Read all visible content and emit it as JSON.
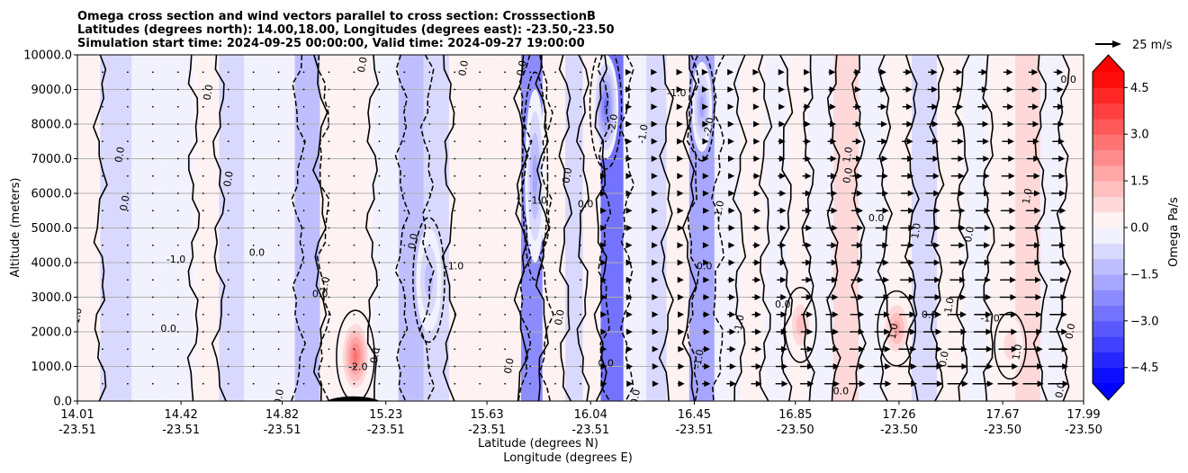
{
  "chart_data": {
    "type": "heatmap",
    "subtype": "filled-contour cross section with contour lines and wind vectors",
    "title_lines": [
      "Omega cross section and wind vectors parallel to cross section: CrosssectionB",
      "Latitudes (degrees north): 14.00,18.00, Longitudes (degrees east): -23.50,-23.50",
      "Simulation start time: 2024-09-25 00:00:00, Valid time: 2024-09-27 19:00:00"
    ],
    "ylabel": "Altitude (meters)",
    "xlabel_lines": [
      "Latitude (degrees N)",
      "Longitude (degrees E)"
    ],
    "ylim": [
      0,
      10000
    ],
    "yticks": [
      0,
      1000,
      2000,
      3000,
      4000,
      5000,
      6000,
      7000,
      8000,
      9000,
      10000
    ],
    "ytick_labels": [
      "0.0",
      "1000.0",
      "2000.0",
      "3000.0",
      "4000.0",
      "5000.0",
      "6000.0",
      "7000.0",
      "8000.0",
      "9000.0",
      "10000.0"
    ],
    "xlim": [
      14.01,
      17.99
    ],
    "xticks": [
      {
        "lat": 14.01,
        "lat_label": "14.01",
        "lon_label": "-23.51"
      },
      {
        "lat": 14.42,
        "lat_label": "14.42",
        "lon_label": "-23.51"
      },
      {
        "lat": 14.82,
        "lat_label": "14.82",
        "lon_label": "-23.51"
      },
      {
        "lat": 15.23,
        "lat_label": "15.23",
        "lon_label": "-23.51"
      },
      {
        "lat": 15.63,
        "lat_label": "15.63",
        "lon_label": "-23.51"
      },
      {
        "lat": 16.04,
        "lat_label": "16.04",
        "lon_label": "-23.51"
      },
      {
        "lat": 16.45,
        "lat_label": "16.45",
        "lon_label": "-23.51"
      },
      {
        "lat": 16.85,
        "lat_label": "16.85",
        "lon_label": "-23.50"
      },
      {
        "lat": 17.26,
        "lat_label": "17.26",
        "lon_label": "-23.50"
      },
      {
        "lat": 17.67,
        "lat_label": "17.67",
        "lon_label": "-23.50"
      },
      {
        "lat": 17.99,
        "lat_label": "17.99",
        "lon_label": "-23.50"
      }
    ],
    "grid": "horizontal",
    "colorbar": {
      "label": "Omega Pa/s",
      "range": [
        -5.0,
        5.0
      ],
      "levels": 20,
      "extend": "both",
      "ticks": [
        -4.5,
        -3.0,
        -1.5,
        0.0,
        1.5,
        3.0,
        4.5
      ],
      "tick_labels": [
        "−4.5",
        "−3.0",
        "−1.5",
        "0.0",
        "1.5",
        "3.0",
        "4.5"
      ],
      "colormap": "bwr",
      "color_low": "#0000ff",
      "color_mid": "#ffffff",
      "color_high": "#ff0000"
    },
    "contour_levels": [
      -2.0,
      -1.0,
      0.0,
      1.0,
      2.0
    ],
    "contour_color": "#000000",
    "vector_key": {
      "label": "25 m/s",
      "speed": 25
    },
    "terrain": {
      "peak_lat": 15.1,
      "peak_height_m": 180,
      "color": "#000000"
    },
    "omega_columns": [
      {
        "lat": 14.05,
        "value": 0.3
      },
      {
        "lat": 14.15,
        "value": -0.6
      },
      {
        "lat": 14.3,
        "value": -0.4
      },
      {
        "lat": 14.42,
        "value": -0.3
      },
      {
        "lat": 14.52,
        "value": 0.2
      },
      {
        "lat": 14.62,
        "value": -0.8
      },
      {
        "lat": 14.72,
        "value": -0.5
      },
      {
        "lat": 14.82,
        "value": -0.3
      },
      {
        "lat": 14.92,
        "value": -1.2
      },
      {
        "lat": 15.02,
        "value": 0.2
      },
      {
        "lat": 15.12,
        "value": 0.4
      },
      {
        "lat": 15.23,
        "value": -0.4
      },
      {
        "lat": 15.33,
        "value": -1.4
      },
      {
        "lat": 15.43,
        "value": -0.6
      },
      {
        "lat": 15.53,
        "value": 0.3
      },
      {
        "lat": 15.63,
        "value": 0.2
      },
      {
        "lat": 15.73,
        "value": 0.1
      },
      {
        "lat": 15.8,
        "value": -2.2
      },
      {
        "lat": 15.9,
        "value": 0.1
      },
      {
        "lat": 15.98,
        "value": -0.8
      },
      {
        "lat": 16.04,
        "value": 0.3
      },
      {
        "lat": 16.12,
        "value": -2.8
      },
      {
        "lat": 16.22,
        "value": -0.2
      },
      {
        "lat": 16.3,
        "value": -0.9
      },
      {
        "lat": 16.38,
        "value": 0.4
      },
      {
        "lat": 16.48,
        "value": -1.8
      },
      {
        "lat": 16.58,
        "value": -0.4
      },
      {
        "lat": 16.68,
        "value": 0.3
      },
      {
        "lat": 16.78,
        "value": -0.5
      },
      {
        "lat": 16.85,
        "value": 0.3
      },
      {
        "lat": 16.95,
        "value": -0.4
      },
      {
        "lat": 17.05,
        "value": 0.6
      },
      {
        "lat": 17.15,
        "value": -0.3
      },
      {
        "lat": 17.26,
        "value": 0.4
      },
      {
        "lat": 17.36,
        "value": -0.6
      },
      {
        "lat": 17.46,
        "value": 0.3
      },
      {
        "lat": 17.56,
        "value": -0.4
      },
      {
        "lat": 17.67,
        "value": 0.4
      },
      {
        "lat": 17.77,
        "value": 0.7
      },
      {
        "lat": 17.87,
        "value": -0.3
      },
      {
        "lat": 17.95,
        "value": 0.4
      }
    ],
    "omega_anomalies": [
      {
        "lat": 15.11,
        "z": 1300,
        "dlat": 0.06,
        "dz": 1100,
        "value": 2.6
      },
      {
        "lat": 17.25,
        "z": 2100,
        "dlat": 0.06,
        "dz": 900,
        "value": 2.0
      },
      {
        "lat": 16.87,
        "z": 2200,
        "dlat": 0.05,
        "dz": 900,
        "value": 1.2
      },
      {
        "lat": 17.7,
        "z": 1600,
        "dlat": 0.05,
        "dz": 800,
        "value": 1.0
      },
      {
        "lat": 16.1,
        "z": 8500,
        "dlat": 0.05,
        "dz": 1500,
        "value": -3.0
      },
      {
        "lat": 16.48,
        "z": 8500,
        "dlat": 0.04,
        "dz": 1300,
        "value": -2.0
      },
      {
        "lat": 15.82,
        "z": 6500,
        "dlat": 0.04,
        "dz": 2500,
        "value": -1.6
      },
      {
        "lat": 15.4,
        "z": 3500,
        "dlat": 0.05,
        "dz": 1500,
        "value": -1.5
      }
    ],
    "wind_rows_m": [
      500,
      1000,
      1500,
      2000,
      2500,
      3000,
      3500,
      4000,
      4500,
      5000,
      5500,
      6000,
      6500,
      7000,
      7500,
      8000,
      8500,
      9000,
      9500
    ],
    "wind_profile": {
      "lat_start_increase": 15.9,
      "max_speed_lower": 12,
      "max_speed_upper": 9,
      "boundary_m": 4500
    },
    "contour_labels": [
      {
        "lat": 14.4,
        "z": 4000,
        "text": "-1.0"
      },
      {
        "lat": 14.02,
        "z": 2400,
        "text": "-1.0"
      },
      {
        "lat": 15.0,
        "z": 3300,
        "text": "-1.0"
      },
      {
        "lat": 14.97,
        "z": 3000,
        "text": "0.0"
      },
      {
        "lat": 14.19,
        "z": 7100,
        "text": "0.0"
      },
      {
        "lat": 14.21,
        "z": 5700,
        "text": "0.0"
      },
      {
        "lat": 14.37,
        "z": 2000,
        "text": "0.0"
      },
      {
        "lat": 14.54,
        "z": 8900,
        "text": "0.0"
      },
      {
        "lat": 14.62,
        "z": 6400,
        "text": "0.0"
      },
      {
        "lat": 14.72,
        "z": 4200,
        "text": "0.0"
      },
      {
        "lat": 15.15,
        "z": 9700,
        "text": "0.0"
      },
      {
        "lat": 15.35,
        "z": 4600,
        "text": "0.0"
      },
      {
        "lat": 15.5,
        "z": 3800,
        "text": "-1.0"
      },
      {
        "lat": 15.55,
        "z": 9600,
        "text": "0.0"
      },
      {
        "lat": 15.78,
        "z": 9600,
        "text": "0.0"
      },
      {
        "lat": 15.83,
        "z": 5700,
        "text": "-1.0"
      },
      {
        "lat": 15.93,
        "z": 2400,
        "text": "0.0"
      },
      {
        "lat": 15.96,
        "z": 6500,
        "text": "0.0"
      },
      {
        "lat": 16.02,
        "z": 5600,
        "text": "0.0"
      },
      {
        "lat": 16.14,
        "z": 8000,
        "text": "-2.0"
      },
      {
        "lat": 16.26,
        "z": 7700,
        "text": "-1.0"
      },
      {
        "lat": 16.38,
        "z": 8800,
        "text": "-1.0"
      },
      {
        "lat": 16.52,
        "z": 7900,
        "text": "-2.0"
      },
      {
        "lat": 16.56,
        "z": 5500,
        "text": "-1.0"
      },
      {
        "lat": 16.49,
        "z": 3800,
        "text": "0.0"
      },
      {
        "lat": 16.48,
        "z": 1200,
        "text": "-1.0"
      },
      {
        "lat": 16.64,
        "z": 2200,
        "text": "-1.0"
      },
      {
        "lat": 16.8,
        "z": 2700,
        "text": "0.0"
      },
      {
        "lat": 17.07,
        "z": 7100,
        "text": "1.0"
      },
      {
        "lat": 17.07,
        "z": 6500,
        "text": "0.0"
      },
      {
        "lat": 17.17,
        "z": 5200,
        "text": "0.0"
      },
      {
        "lat": 17.25,
        "z": 2000,
        "text": "1.0"
      },
      {
        "lat": 17.34,
        "z": 4900,
        "text": "1.0"
      },
      {
        "lat": 17.38,
        "z": 2400,
        "text": "0.0"
      },
      {
        "lat": 17.47,
        "z": 2700,
        "text": "-1.0"
      },
      {
        "lat": 17.55,
        "z": 4800,
        "text": "0.0"
      },
      {
        "lat": 17.62,
        "z": 2300,
        "text": "-1.0"
      },
      {
        "lat": 17.74,
        "z": 1400,
        "text": "1.0"
      },
      {
        "lat": 17.78,
        "z": 5900,
        "text": "1.0"
      },
      {
        "lat": 17.93,
        "z": 9200,
        "text": "0.0"
      },
      {
        "lat": 17.95,
        "z": 2000,
        "text": "0.0"
      },
      {
        "lat": 14.82,
        "z": 100,
        "text": "0.0"
      },
      {
        "lat": 15.12,
        "z": 900,
        "text": "-2.0"
      },
      {
        "lat": 15.2,
        "z": 1300,
        "text": "0.0"
      },
      {
        "lat": 15.73,
        "z": 1000,
        "text": "0.0"
      },
      {
        "lat": 16.1,
        "z": 1000,
        "text": "0.0"
      },
      {
        "lat": 16.23,
        "z": 100,
        "text": "0.0"
      },
      {
        "lat": 17.45,
        "z": 1200,
        "text": "0.0"
      },
      {
        "lat": 17.03,
        "z": 200,
        "text": "0.0"
      },
      {
        "lat": 17.91,
        "z": 300,
        "text": "0.0"
      }
    ]
  }
}
